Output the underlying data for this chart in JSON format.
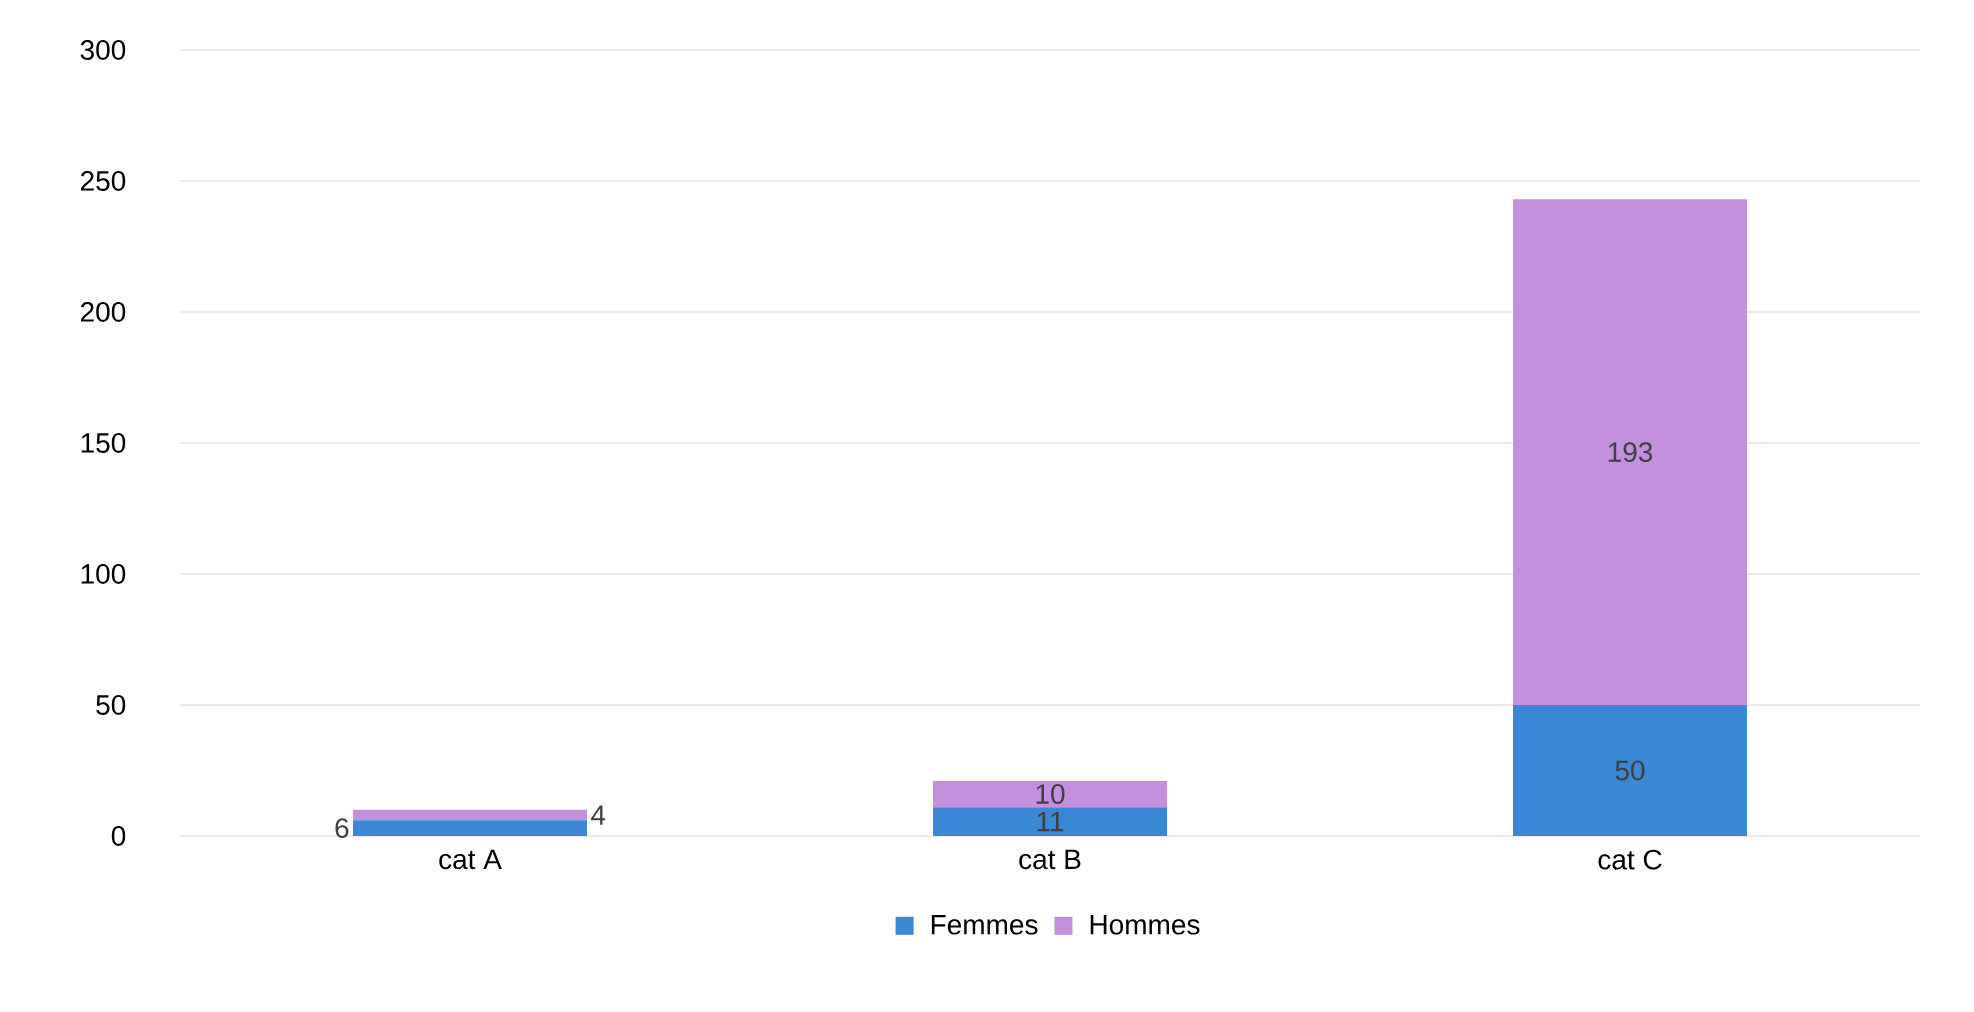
{
  "chart_data": {
    "type": "bar",
    "stacked": true,
    "categories": [
      "cat A",
      "cat B",
      "cat C"
    ],
    "series": [
      {
        "name": "Femmes",
        "color": "#3a87d6",
        "values": [
          6,
          11,
          50
        ]
      },
      {
        "name": "Hommes",
        "color": "#c48fdc",
        "values": [
          4,
          10,
          193
        ]
      }
    ],
    "ylim": [
      0,
      300
    ],
    "yticks": [
      0,
      50,
      100,
      150,
      200,
      250,
      300
    ],
    "grid": "y",
    "legend": "bottom",
    "data_labels": true
  }
}
